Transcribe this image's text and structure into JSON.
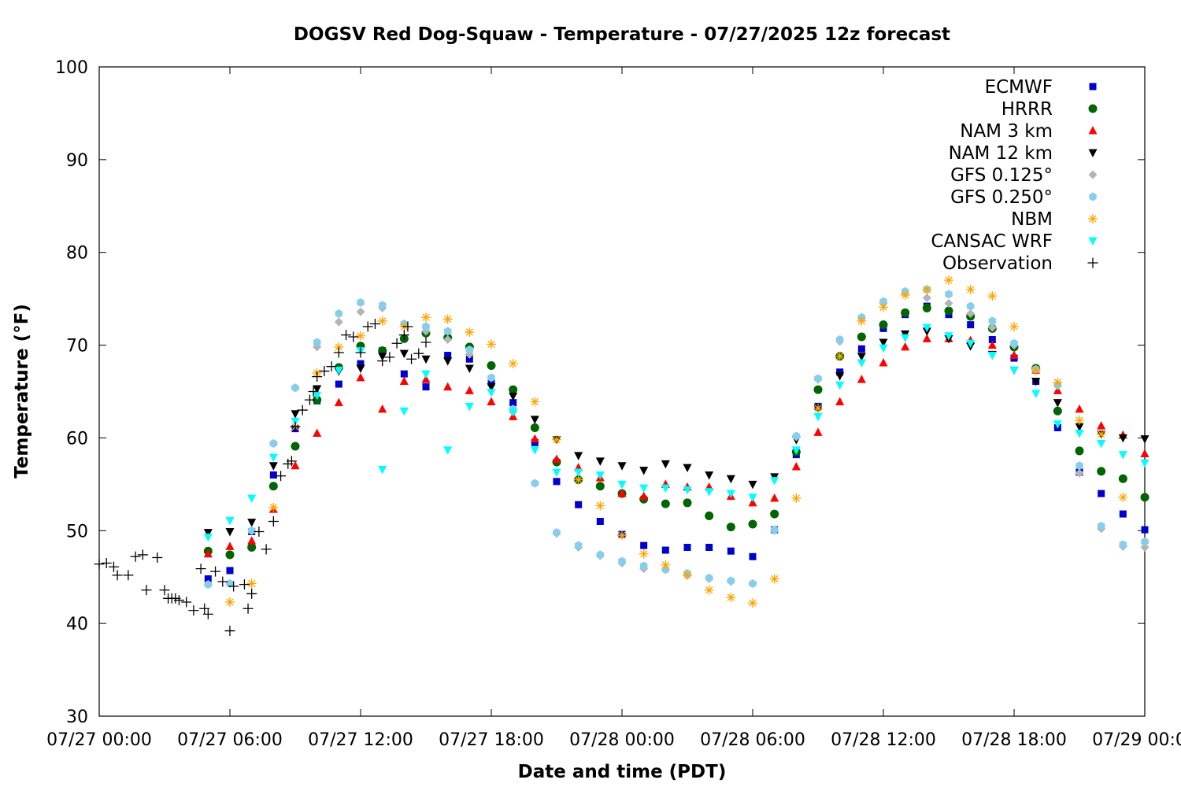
{
  "chart_data": {
    "type": "scatter",
    "title": "DOGSV Red Dog-Squaw - Temperature - 07/27/2025 12z forecast",
    "xlabel": "Date and time (PDT)",
    "ylabel": "Temperature (°F)",
    "xlim": [
      "07/27 00:00",
      "07/29 00:00"
    ],
    "ylim": [
      30,
      100
    ],
    "y_ticks": [
      30,
      40,
      50,
      60,
      70,
      80,
      90,
      100
    ],
    "x_ticks": [
      "07/27 00:00",
      "07/27 06:00",
      "07/27 12:00",
      "07/27 18:00",
      "07/28 00:00",
      "07/28 06:00",
      "07/28 12:00",
      "07/28 18:00",
      "07/29 00:00"
    ],
    "grid": false,
    "legend_position": "top-right",
    "series": [
      {
        "name": "ECMWF",
        "color": "#0000cc",
        "marker": "square",
        "x": [
          "07/27 05:00",
          "07/27 06:00",
          "07/27 07:00",
          "07/27 08:00",
          "07/27 09:00",
          "07/27 10:00",
          "07/27 11:00",
          "07/27 12:00",
          "07/27 13:00",
          "07/27 14:00",
          "07/27 15:00",
          "07/27 16:00",
          "07/27 17:00",
          "07/27 18:00",
          "07/27 19:00",
          "07/27 20:00",
          "07/27 21:00",
          "07/27 22:00",
          "07/27 23:00",
          "07/28 00:00",
          "07/28 01:00",
          "07/28 02:00",
          "07/28 03:00",
          "07/28 04:00",
          "07/28 05:00",
          "07/28 06:00",
          "07/28 07:00",
          "07/28 08:00",
          "07/28 09:00",
          "07/28 10:00",
          "07/28 11:00",
          "07/28 12:00",
          "07/28 13:00",
          "07/28 14:00",
          "07/28 15:00",
          "07/28 16:00",
          "07/28 17:00",
          "07/28 18:00",
          "07/28 19:00",
          "07/28 20:00",
          "07/28 21:00",
          "07/28 22:00",
          "07/28 23:00",
          "07/29 00:00"
        ],
        "y": [
          44.8,
          45.7,
          49.9,
          56.0,
          61.0,
          64.0,
          65.8,
          68.0,
          69.4,
          66.9,
          65.5,
          68.9,
          68.5,
          66.0,
          63.8,
          59.5,
          55.3,
          52.8,
          51.0,
          49.6,
          48.4,
          47.9,
          48.2,
          48.2,
          47.8,
          47.2,
          50.1,
          58.2,
          63.4,
          67.1,
          69.6,
          71.8,
          73.3,
          74.2,
          73.3,
          72.2,
          70.6,
          68.6,
          66.1,
          61.1,
          56.3,
          54.0,
          51.8,
          50.1
        ]
      },
      {
        "name": "HRRR",
        "color": "#006400",
        "marker": "circle",
        "x": [
          "07/27 05:00",
          "07/27 06:00",
          "07/27 07:00",
          "07/27 08:00",
          "07/27 09:00",
          "07/27 10:00",
          "07/27 11:00",
          "07/27 12:00",
          "07/27 13:00",
          "07/27 14:00",
          "07/27 15:00",
          "07/27 16:00",
          "07/27 17:00",
          "07/27 18:00",
          "07/27 19:00",
          "07/27 20:00",
          "07/27 21:00",
          "07/27 22:00",
          "07/27 23:00",
          "07/28 00:00",
          "07/28 01:00",
          "07/28 02:00",
          "07/28 03:00",
          "07/28 04:00",
          "07/28 05:00",
          "07/28 06:00",
          "07/28 07:00",
          "07/28 08:00",
          "07/28 09:00",
          "07/28 10:00",
          "07/28 11:00",
          "07/28 12:00",
          "07/28 13:00",
          "07/28 14:00",
          "07/28 15:00",
          "07/28 16:00",
          "07/28 17:00",
          "07/28 18:00",
          "07/28 19:00",
          "07/28 20:00",
          "07/28 21:00",
          "07/28 22:00",
          "07/28 23:00",
          "07/29 00:00"
        ],
        "y": [
          47.8,
          47.4,
          48.2,
          54.8,
          59.1,
          64.1,
          67.6,
          69.9,
          69.4,
          70.7,
          71.3,
          70.8,
          69.8,
          67.8,
          65.2,
          61.1,
          57.4,
          55.5,
          54.8,
          54.0,
          53.4,
          52.9,
          53.0,
          51.6,
          50.4,
          50.7,
          51.8,
          58.5,
          65.2,
          68.8,
          70.9,
          72.2,
          73.5,
          74.0,
          73.7,
          73.1,
          71.8,
          69.8,
          67.5,
          62.9,
          58.6,
          56.4,
          55.6,
          53.6
        ]
      },
      {
        "name": "NAM 3 km",
        "color": "#ff0000",
        "marker": "triangle-up",
        "x": [
          "07/27 05:00",
          "07/27 06:00",
          "07/27 07:00",
          "07/27 08:00",
          "07/27 09:00",
          "07/27 10:00",
          "07/27 11:00",
          "07/27 12:00",
          "07/27 13:00",
          "07/27 14:00",
          "07/27 15:00",
          "07/27 16:00",
          "07/27 17:00",
          "07/27 18:00",
          "07/27 19:00",
          "07/27 20:00",
          "07/27 21:00",
          "07/27 22:00",
          "07/27 23:00",
          "07/28 00:00",
          "07/28 01:00",
          "07/28 02:00",
          "07/28 03:00",
          "07/28 04:00",
          "07/28 05:00",
          "07/28 06:00",
          "07/28 07:00",
          "07/28 08:00",
          "07/28 09:00",
          "07/28 10:00",
          "07/28 11:00",
          "07/28 12:00",
          "07/28 13:00",
          "07/28 14:00",
          "07/28 15:00",
          "07/28 16:00",
          "07/28 17:00",
          "07/28 18:00",
          "07/28 19:00",
          "07/28 20:00",
          "07/28 21:00",
          "07/28 22:00",
          "07/28 23:00",
          "07/29 00:00"
        ],
        "y": [
          47.5,
          48.3,
          48.9,
          52.3,
          57.0,
          60.5,
          63.8,
          66.5,
          63.1,
          66.1,
          66.3,
          65.5,
          65.1,
          63.9,
          62.3,
          59.9,
          57.7,
          56.8,
          55.7,
          54.0,
          53.7,
          55.0,
          54.7,
          54.7,
          53.7,
          53.0,
          53.5,
          56.9,
          60.6,
          63.9,
          66.3,
          68.1,
          69.8,
          70.7,
          70.7,
          70.5,
          70.0,
          68.9,
          67.3,
          65.1,
          63.1,
          61.3,
          60.3,
          58.3
        ]
      },
      {
        "name": "NAM 12 km",
        "color": "#000000",
        "marker": "triangle-down",
        "x": [
          "07/27 05:00",
          "07/27 06:00",
          "07/27 07:00",
          "07/27 08:00",
          "07/27 09:00",
          "07/27 10:00",
          "07/27 11:00",
          "07/27 12:00",
          "07/27 13:00",
          "07/27 14:00",
          "07/27 15:00",
          "07/27 16:00",
          "07/27 17:00",
          "07/27 18:00",
          "07/27 19:00",
          "07/27 20:00",
          "07/27 21:00",
          "07/27 22:00",
          "07/27 23:00",
          "07/28 00:00",
          "07/28 01:00",
          "07/28 02:00",
          "07/28 03:00",
          "07/28 04:00",
          "07/28 05:00",
          "07/28 06:00",
          "07/28 07:00",
          "07/28 08:00",
          "07/28 09:00",
          "07/28 10:00",
          "07/28 11:00",
          "07/28 12:00",
          "07/28 13:00",
          "07/28 14:00",
          "07/28 15:00",
          "07/28 16:00",
          "07/28 17:00",
          "07/28 18:00",
          "07/28 19:00",
          "07/28 20:00",
          "07/28 21:00",
          "07/28 22:00",
          "07/28 23:00",
          "07/29 00:00"
        ],
        "y": [
          49.8,
          49.9,
          50.9,
          57.0,
          62.6,
          65.3,
          67.2,
          67.5,
          68.8,
          69.1,
          68.5,
          68.3,
          67.5,
          65.5,
          64.5,
          62.0,
          59.8,
          58.1,
          57.5,
          57.0,
          56.5,
          57.2,
          56.8,
          56.0,
          55.6,
          55.0,
          55.8,
          59.8,
          63.2,
          66.7,
          68.8,
          70.3,
          71.2,
          71.5,
          70.7,
          69.9,
          69.0,
          67.3,
          66.1,
          63.8,
          61.2,
          60.4,
          60.0,
          59.9
        ]
      },
      {
        "name": "GFS 0.125°",
        "color": "#b4b4b4",
        "marker": "diamond",
        "x": [
          "07/27 05:00",
          "07/27 06:00",
          "07/27 07:00",
          "07/27 08:00",
          "07/27 09:00",
          "07/27 10:00",
          "07/27 11:00",
          "07/27 12:00",
          "07/27 13:00",
          "07/27 14:00",
          "07/27 15:00",
          "07/27 16:00",
          "07/27 17:00",
          "07/27 18:00",
          "07/27 19:00",
          "07/27 20:00",
          "07/27 21:00",
          "07/27 22:00",
          "07/27 23:00",
          "07/28 00:00",
          "07/28 01:00",
          "07/28 02:00",
          "07/28 03:00",
          "07/28 04:00",
          "07/28 05:00",
          "07/28 06:00",
          "07/28 07:00",
          "07/28 08:00",
          "07/28 09:00",
          "07/28 10:00",
          "07/28 11:00",
          "07/28 12:00",
          "07/28 13:00",
          "07/28 14:00",
          "07/28 15:00",
          "07/28 16:00",
          "07/28 17:00",
          "07/28 18:00",
          "07/28 19:00",
          "07/28 20:00",
          "07/28 21:00",
          "07/28 22:00",
          "07/28 23:00",
          "07/29 00:00"
        ],
        "y": [
          44.2,
          44.3,
          50.0,
          59.4,
          65.4,
          69.8,
          72.5,
          73.6,
          74.0,
          72.2,
          71.5,
          70.6,
          69.0,
          66.5,
          62.8,
          55.1,
          49.7,
          48.2,
          47.3,
          46.5,
          45.9,
          45.8,
          45.2,
          44.8,
          44.5,
          44.3,
          50.0,
          60.1,
          66.3,
          70.4,
          72.9,
          74.5,
          75.6,
          75.1,
          74.5,
          73.4,
          71.9,
          70.0,
          67.4,
          65.6,
          56.2,
          50.2,
          48.3,
          48.2
        ]
      },
      {
        "name": "GFS 0.250°",
        "color": "#87ceeb",
        "marker": "hexagon",
        "x": [
          "07/27 05:00",
          "07/27 06:00",
          "07/27 07:00",
          "07/27 08:00",
          "07/27 09:00",
          "07/27 10:00",
          "07/27 11:00",
          "07/27 12:00",
          "07/27 13:00",
          "07/27 14:00",
          "07/27 15:00",
          "07/27 16:00",
          "07/27 17:00",
          "07/27 18:00",
          "07/27 19:00",
          "07/27 20:00",
          "07/27 21:00",
          "07/27 22:00",
          "07/27 23:00",
          "07/28 00:00",
          "07/28 01:00",
          "07/28 02:00",
          "07/28 03:00",
          "07/28 04:00",
          "07/28 05:00",
          "07/28 06:00",
          "07/28 07:00",
          "07/28 08:00",
          "07/28 09:00",
          "07/28 10:00",
          "07/28 11:00",
          "07/28 12:00",
          "07/28 13:00",
          "07/28 14:00",
          "07/28 15:00",
          "07/28 16:00",
          "07/28 17:00",
          "07/28 18:00",
          "07/28 19:00",
          "07/28 20:00",
          "07/28 21:00",
          "07/28 22:00",
          "07/28 23:00",
          "07/29 00:00"
        ],
        "y": [
          44.2,
          44.3,
          50.0,
          59.4,
          65.4,
          70.3,
          73.4,
          74.6,
          74.3,
          72.3,
          72.0,
          71.5,
          69.5,
          66.5,
          63.1,
          55.1,
          49.8,
          48.4,
          47.4,
          46.7,
          46.2,
          45.8,
          45.4,
          44.9,
          44.6,
          44.3,
          50.1,
          60.2,
          66.4,
          70.6,
          73.0,
          74.7,
          75.8,
          76.0,
          75.5,
          74.2,
          72.6,
          70.2,
          67.4,
          65.7,
          57.0,
          50.5,
          48.5,
          48.8
        ]
      },
      {
        "name": "NBM",
        "color": "#ffa500",
        "marker": "asterisk",
        "x": [
          "07/27 06:00",
          "07/27 07:00",
          "07/27 08:00",
          "07/27 09:00",
          "07/27 10:00",
          "07/27 11:00",
          "07/27 12:00",
          "07/27 13:00",
          "07/27 14:00",
          "07/27 15:00",
          "07/27 16:00",
          "07/27 17:00",
          "07/27 18:00",
          "07/27 19:00",
          "07/27 20:00",
          "07/27 21:00",
          "07/27 22:00",
          "07/27 23:00",
          "07/28 00:00",
          "07/28 01:00",
          "07/28 02:00",
          "07/28 03:00",
          "07/28 04:00",
          "07/28 05:00",
          "07/28 06:00",
          "07/28 07:00",
          "07/28 08:00",
          "07/28 09:00",
          "07/28 10:00",
          "07/28 11:00",
          "07/28 12:00",
          "07/28 13:00",
          "07/28 14:00",
          "07/28 15:00",
          "07/28 16:00",
          "07/28 17:00",
          "07/28 18:00",
          "07/28 19:00",
          "07/28 20:00",
          "07/28 21:00",
          "07/28 22:00",
          "07/28 23:00"
        ],
        "y": [
          42.3,
          44.3,
          52.5,
          61.2,
          67.0,
          69.8,
          71.0,
          72.6,
          72.0,
          73.0,
          72.8,
          71.4,
          70.1,
          68.0,
          63.9,
          59.8,
          55.5,
          52.7,
          49.5,
          47.5,
          46.3,
          45.2,
          43.6,
          42.8,
          42.2,
          44.8,
          53.5,
          63.2,
          68.8,
          72.6,
          74.1,
          75.4,
          76.0,
          77.0,
          76.0,
          75.3,
          72.0,
          67.3,
          66.0,
          61.9,
          60.4,
          53.6
        ]
      },
      {
        "name": "CANSAC WRF",
        "color": "#00ffff",
        "marker": "triangle-down",
        "x": [
          "07/27 05:00",
          "07/27 06:00",
          "07/27 07:00",
          "07/27 08:00",
          "07/27 09:00",
          "07/27 10:00",
          "07/27 11:00",
          "07/27 12:00",
          "07/27 13:00",
          "07/27 14:00",
          "07/27 15:00",
          "07/27 16:00",
          "07/27 17:00",
          "07/27 18:00",
          "07/27 19:00",
          "07/27 20:00",
          "07/27 21:00",
          "07/27 22:00",
          "07/27 23:00",
          "07/28 00:00",
          "07/28 01:00",
          "07/28 02:00",
          "07/28 03:00",
          "07/28 04:00",
          "07/28 05:00",
          "07/28 06:00",
          "07/28 07:00",
          "07/28 08:00",
          "07/28 09:00",
          "07/28 10:00",
          "07/28 11:00",
          "07/28 12:00",
          "07/28 13:00",
          "07/28 14:00",
          "07/28 15:00",
          "07/28 16:00",
          "07/28 17:00",
          "07/28 18:00",
          "07/28 19:00",
          "07/28 20:00",
          "07/28 21:00",
          "07/28 22:00",
          "07/28 23:00",
          "07/29 00:00"
        ],
        "y": [
          49.3,
          51.1,
          53.5,
          57.9,
          61.8,
          64.6,
          67.3,
          69.4,
          56.6,
          62.9,
          66.9,
          58.7,
          63.4,
          64.9,
          62.8,
          58.7,
          56.3,
          56.3,
          56.0,
          55.0,
          54.6,
          54.6,
          54.4,
          54.2,
          54.0,
          53.6,
          55.4,
          58.7,
          62.3,
          65.7,
          68.1,
          69.7,
          70.8,
          71.9,
          71.0,
          70.2,
          68.9,
          67.3,
          64.8,
          61.5,
          60.5,
          59.4,
          58.2,
          57.3
        ]
      },
      {
        "name": "Observation",
        "color": "#000000",
        "marker": "plus",
        "x": [
          "07/27 00:00",
          "07/27 00:20",
          "07/27 00:40",
          "07/27 00:50",
          "07/27 01:20",
          "07/27 01:40",
          "07/27 02:00",
          "07/27 02:10",
          "07/27 02:40",
          "07/27 03:00",
          "07/27 03:10",
          "07/27 03:20",
          "07/27 03:30",
          "07/27 03:40",
          "07/27 04:00",
          "07/27 04:20",
          "07/27 04:40",
          "07/27 04:50",
          "07/27 05:00",
          "07/27 05:20",
          "07/27 05:40",
          "07/27 06:00",
          "07/27 06:10",
          "07/27 06:40",
          "07/27 06:50",
          "07/27 07:00",
          "07/27 07:20",
          "07/27 07:40",
          "07/27 08:00",
          "07/27 08:20",
          "07/27 08:40",
          "07/27 08:50",
          "07/27 09:00",
          "07/27 09:20",
          "07/27 09:40",
          "07/27 09:50",
          "07/27 10:00",
          "07/27 10:20",
          "07/27 10:40",
          "07/27 11:00",
          "07/27 11:20",
          "07/27 11:40",
          "07/27 12:00",
          "07/27 12:20",
          "07/27 12:40",
          "07/27 13:00",
          "07/27 13:20",
          "07/27 13:40",
          "07/27 14:00",
          "07/27 14:10",
          "07/27 14:20",
          "07/27 14:40",
          "07/27 15:00"
        ],
        "y": [
          46.4,
          46.5,
          46.1,
          45.2,
          45.2,
          47.2,
          47.4,
          43.6,
          47.1,
          43.6,
          42.7,
          42.7,
          42.7,
          42.5,
          42.3,
          41.4,
          45.9,
          41.6,
          41.0,
          45.6,
          44.5,
          39.2,
          44.0,
          44.2,
          41.6,
          43.2,
          49.9,
          48.0,
          51.0,
          55.9,
          57.2,
          57.5,
          61.2,
          63.0,
          64.1,
          65.0,
          66.6,
          67.2,
          67.7,
          69.2,
          71.1,
          70.9,
          69.2,
          72.0,
          72.3,
          68.3,
          68.7,
          70.2,
          71.1,
          72.0,
          68.5,
          69.1,
          70.3
        ]
      }
    ]
  }
}
